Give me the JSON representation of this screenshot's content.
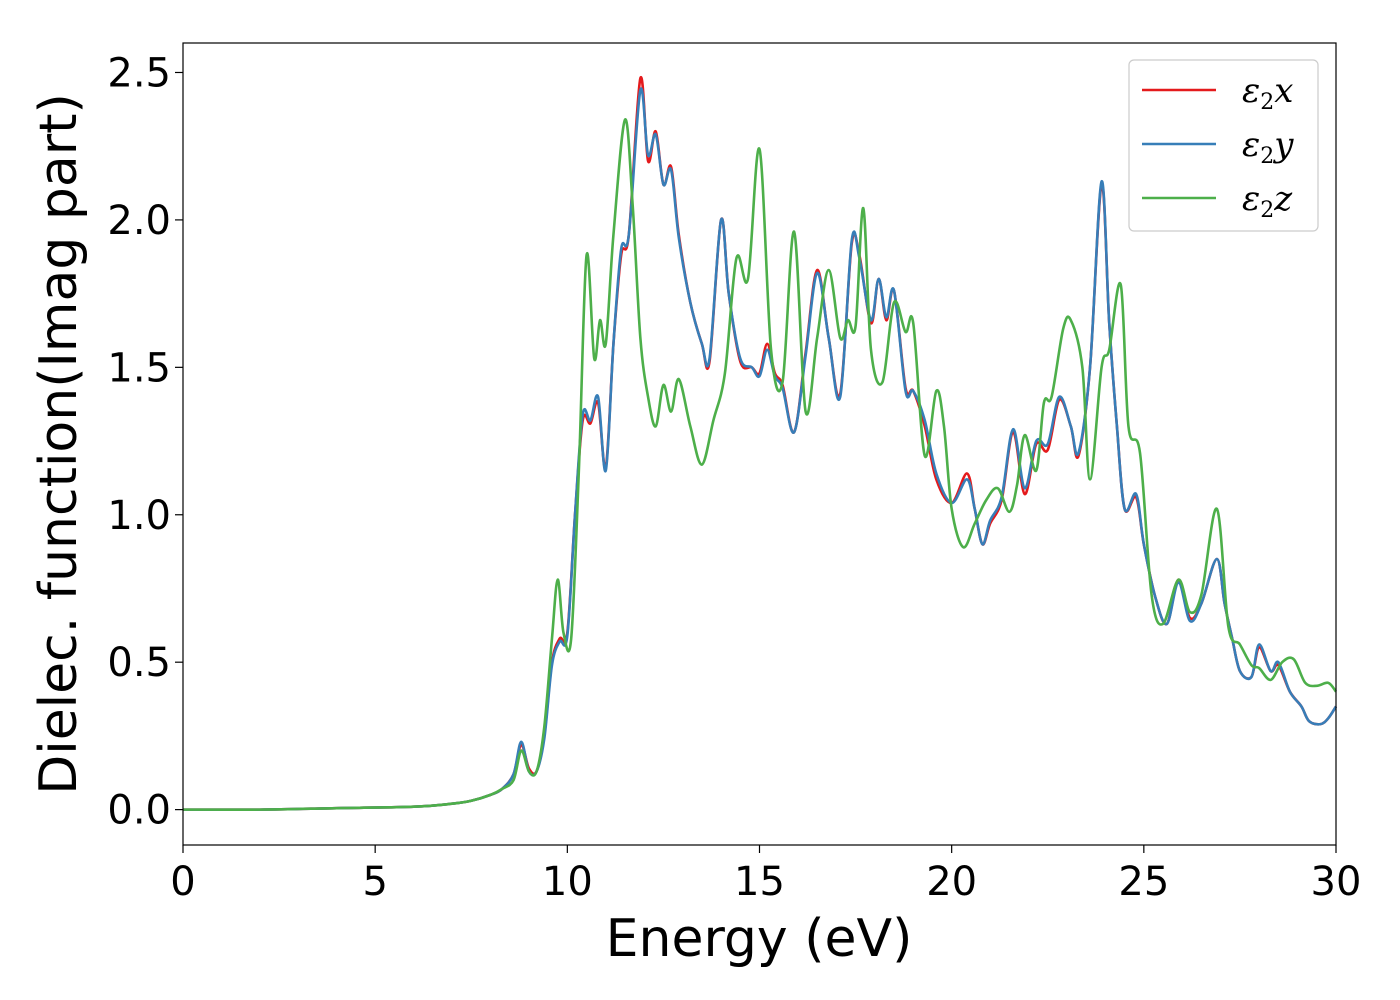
{
  "chart_data": {
    "type": "line",
    "xlabel": "Energy (eV)",
    "ylabel": "Dielec. function(Imag part)",
    "xlim": [
      0,
      30
    ],
    "ylim": [
      -0.12,
      2.6
    ],
    "xticks": [
      0,
      5,
      10,
      15,
      20,
      25,
      30
    ],
    "yticks": [
      0.0,
      0.5,
      1.0,
      1.5,
      2.0,
      2.5
    ],
    "xtick_labels": [
      "0",
      "5",
      "10",
      "15",
      "20",
      "25",
      "30"
    ],
    "ytick_labels": [
      "0.0",
      "0.5",
      "1.0",
      "1.5",
      "2.0",
      "2.5"
    ],
    "grid": false,
    "legend_position": "top-right",
    "series": [
      {
        "name": "ε2x",
        "legend_base": "ε",
        "legend_sub": "2",
        "legend_suffix": "x",
        "color": "#e41a1c",
        "x": [
          0,
          2,
          4,
          6,
          7,
          7.5,
          8,
          8.3,
          8.6,
          8.8,
          9.0,
          9.2,
          9.4,
          9.6,
          9.8,
          10.0,
          10.2,
          10.4,
          10.6,
          10.8,
          11.0,
          11.2,
          11.4,
          11.6,
          11.9,
          12.1,
          12.3,
          12.5,
          12.7,
          12.9,
          13.2,
          13.5,
          13.7,
          14.0,
          14.2,
          14.5,
          14.8,
          15.0,
          15.2,
          15.4,
          15.6,
          15.9,
          16.2,
          16.5,
          16.8,
          17.1,
          17.4,
          17.6,
          17.9,
          18.1,
          18.3,
          18.5,
          18.8,
          19.0,
          19.3,
          19.6,
          20.0,
          20.4,
          20.6,
          20.8,
          21.0,
          21.3,
          21.6,
          21.9,
          22.2,
          22.5,
          22.8,
          23.1,
          23.3,
          23.6,
          23.9,
          24.1,
          24.3,
          24.5,
          24.8,
          25.0,
          25.3,
          25.6,
          25.9,
          26.2,
          26.5,
          26.9,
          27.1,
          27.3,
          27.5,
          27.8,
          28.0,
          28.3,
          28.5,
          28.8,
          29.1,
          29.3,
          29.6,
          29.8,
          30.0
        ],
        "y": [
          0.0,
          0.0,
          0.005,
          0.01,
          0.02,
          0.03,
          0.05,
          0.07,
          0.12,
          0.22,
          0.14,
          0.13,
          0.25,
          0.5,
          0.58,
          0.6,
          1.0,
          1.32,
          1.31,
          1.38,
          1.16,
          1.58,
          1.88,
          1.95,
          2.48,
          2.2,
          2.3,
          2.12,
          2.18,
          1.95,
          1.72,
          1.58,
          1.52,
          2.0,
          1.75,
          1.52,
          1.5,
          1.48,
          1.58,
          1.48,
          1.44,
          1.28,
          1.55,
          1.83,
          1.6,
          1.41,
          1.92,
          1.88,
          1.65,
          1.8,
          1.66,
          1.76,
          1.43,
          1.42,
          1.3,
          1.12,
          1.04,
          1.14,
          1.02,
          0.9,
          0.97,
          1.05,
          1.28,
          1.07,
          1.24,
          1.22,
          1.39,
          1.3,
          1.2,
          1.5,
          2.12,
          1.65,
          1.3,
          1.02,
          1.06,
          0.9,
          0.72,
          0.63,
          0.78,
          0.65,
          0.7,
          0.85,
          0.7,
          0.58,
          0.47,
          0.45,
          0.55,
          0.47,
          0.49,
          0.4,
          0.35,
          0.3,
          0.29,
          0.31,
          0.35
        ]
      },
      {
        "name": "ε2y",
        "legend_base": "ε",
        "legend_sub": "2",
        "legend_suffix": "y",
        "color": "#377eb8",
        "x": [
          0,
          2,
          4,
          6,
          7,
          7.5,
          8,
          8.3,
          8.6,
          8.8,
          9.0,
          9.2,
          9.4,
          9.6,
          9.8,
          10.0,
          10.2,
          10.4,
          10.6,
          10.8,
          11.0,
          11.2,
          11.4,
          11.6,
          11.9,
          12.1,
          12.3,
          12.5,
          12.7,
          12.9,
          13.2,
          13.5,
          13.7,
          14.0,
          14.2,
          14.5,
          14.8,
          15.0,
          15.2,
          15.4,
          15.6,
          15.9,
          16.2,
          16.5,
          16.8,
          17.1,
          17.4,
          17.6,
          17.9,
          18.1,
          18.3,
          18.5,
          18.8,
          19.0,
          19.3,
          19.6,
          20.0,
          20.4,
          20.6,
          20.8,
          21.0,
          21.3,
          21.6,
          21.9,
          22.2,
          22.5,
          22.8,
          23.1,
          23.3,
          23.6,
          23.9,
          24.1,
          24.3,
          24.5,
          24.8,
          25.0,
          25.3,
          25.6,
          25.9,
          26.2,
          26.5,
          26.9,
          27.1,
          27.3,
          27.5,
          27.8,
          28.0,
          28.3,
          28.5,
          28.8,
          29.1,
          29.3,
          29.6,
          29.8,
          30.0
        ],
        "y": [
          0.0,
          0.0,
          0.005,
          0.01,
          0.02,
          0.03,
          0.05,
          0.07,
          0.12,
          0.23,
          0.13,
          0.13,
          0.24,
          0.49,
          0.57,
          0.59,
          1.0,
          1.34,
          1.32,
          1.4,
          1.15,
          1.58,
          1.9,
          1.95,
          2.44,
          2.22,
          2.29,
          2.12,
          2.17,
          1.94,
          1.72,
          1.58,
          1.53,
          2.0,
          1.75,
          1.53,
          1.5,
          1.47,
          1.56,
          1.47,
          1.43,
          1.28,
          1.54,
          1.82,
          1.6,
          1.4,
          1.93,
          1.87,
          1.66,
          1.8,
          1.67,
          1.76,
          1.42,
          1.42,
          1.32,
          1.14,
          1.04,
          1.12,
          1.02,
          0.9,
          0.98,
          1.06,
          1.29,
          1.09,
          1.25,
          1.24,
          1.4,
          1.3,
          1.21,
          1.5,
          2.13,
          1.65,
          1.3,
          1.02,
          1.07,
          0.9,
          0.72,
          0.63,
          0.77,
          0.64,
          0.7,
          0.85,
          0.7,
          0.58,
          0.47,
          0.45,
          0.56,
          0.47,
          0.5,
          0.4,
          0.35,
          0.3,
          0.29,
          0.31,
          0.35
        ]
      },
      {
        "name": "ε2z",
        "legend_base": "ε",
        "legend_sub": "2",
        "legend_suffix": "z",
        "color": "#4daf4a",
        "x": [
          0,
          2,
          4,
          6,
          7,
          7.5,
          8,
          8.3,
          8.6,
          8.8,
          9.0,
          9.2,
          9.4,
          9.6,
          9.75,
          9.9,
          10.1,
          10.3,
          10.5,
          10.7,
          10.85,
          11.0,
          11.2,
          11.5,
          11.7,
          11.9,
          12.1,
          12.3,
          12.5,
          12.7,
          12.9,
          13.2,
          13.5,
          13.8,
          14.1,
          14.4,
          14.7,
          15.0,
          15.3,
          15.6,
          15.9,
          16.2,
          16.5,
          16.8,
          17.1,
          17.3,
          17.5,
          17.7,
          17.9,
          18.2,
          18.5,
          18.8,
          19.0,
          19.3,
          19.6,
          19.8,
          20.0,
          20.3,
          20.6,
          20.9,
          21.2,
          21.5,
          21.7,
          21.9,
          22.2,
          22.4,
          22.6,
          22.9,
          23.1,
          23.4,
          23.6,
          23.9,
          24.1,
          24.4,
          24.6,
          24.9,
          25.2,
          25.5,
          25.9,
          26.2,
          26.5,
          26.9,
          27.2,
          27.5,
          27.8,
          28.0,
          28.3,
          28.6,
          28.9,
          29.2,
          29.5,
          29.8,
          30.0
        ],
        "y": [
          0.0,
          0.0,
          0.005,
          0.01,
          0.02,
          0.03,
          0.05,
          0.07,
          0.1,
          0.2,
          0.13,
          0.13,
          0.28,
          0.58,
          0.78,
          0.6,
          0.58,
          1.15,
          1.88,
          1.53,
          1.66,
          1.58,
          1.95,
          2.34,
          2.05,
          1.6,
          1.4,
          1.3,
          1.44,
          1.35,
          1.46,
          1.3,
          1.17,
          1.32,
          1.48,
          1.87,
          1.8,
          2.24,
          1.56,
          1.45,
          1.96,
          1.35,
          1.6,
          1.83,
          1.6,
          1.66,
          1.64,
          2.04,
          1.56,
          1.45,
          1.72,
          1.62,
          1.65,
          1.2,
          1.42,
          1.3,
          1.02,
          0.89,
          0.97,
          1.05,
          1.09,
          1.01,
          1.1,
          1.27,
          1.15,
          1.38,
          1.4,
          1.63,
          1.66,
          1.5,
          1.12,
          1.5,
          1.56,
          1.78,
          1.3,
          1.21,
          0.73,
          0.63,
          0.78,
          0.67,
          0.73,
          1.02,
          0.62,
          0.56,
          0.49,
          0.48,
          0.44,
          0.5,
          0.51,
          0.43,
          0.42,
          0.43,
          0.4
        ]
      }
    ]
  }
}
